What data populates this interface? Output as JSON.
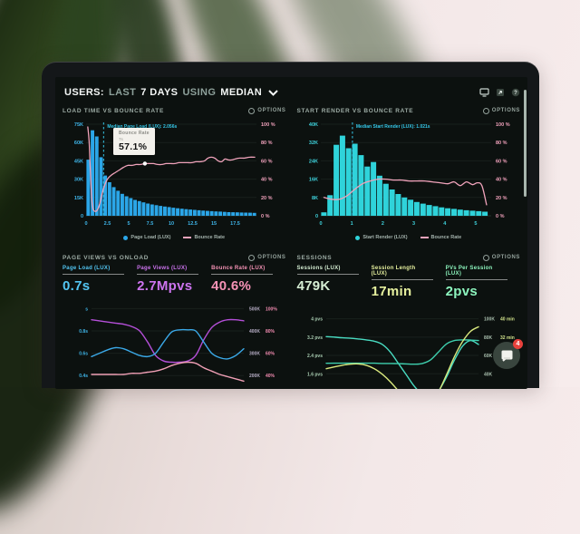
{
  "header": {
    "parts": [
      {
        "text": "USERS:",
        "emph": true
      },
      {
        "text": "LAST",
        "emph": false
      },
      {
        "text": "7 DAYS",
        "emph": true
      },
      {
        "text": "USING",
        "emph": false
      },
      {
        "text": "MEDIAN",
        "emph": true
      }
    ],
    "icons": [
      {
        "name": "display-icon"
      },
      {
        "name": "export-icon"
      },
      {
        "name": "help-icon",
        "glyph": "?"
      }
    ]
  },
  "fab": {
    "badge": "4",
    "badge_color": "#e8413c"
  },
  "chart_data": [
    {
      "id": "load_time_vs_bounce_rate",
      "type": "histogram+line",
      "title": "LOAD TIME VS BOUNCE RATE",
      "options_label": "OPTIONS",
      "x_ticks": [
        0,
        2.5,
        5,
        7.5,
        10,
        12.5,
        15,
        17.5
      ],
      "x_max": 20,
      "axis_left_color": "#3fb6ea",
      "axis_right_color": "#f1a2bc",
      "y_left": {
        "max": 75,
        "unit": "K",
        "ticks": [
          "75K",
          "60K",
          "45K",
          "30K",
          "15K",
          "0"
        ]
      },
      "y_right": {
        "max": 100,
        "unit": "%",
        "ticks": [
          "100 %",
          "80 %",
          "60 %",
          "40 %",
          "20 %",
          "0 %"
        ]
      },
      "bars": {
        "name": "Page Load (LUX)",
        "color": "#2ba6e8",
        "start": 0.25,
        "step": 0.5,
        "unit": "K",
        "values": [
          46,
          70,
          65,
          48,
          33,
          27.5,
          23.5,
          20.5,
          18,
          16,
          14.5,
          13,
          12,
          11,
          10,
          9.3,
          8.7,
          8.1,
          7.6,
          7.1,
          6.6,
          6.2,
          5.8,
          5.4,
          5.1,
          4.8,
          4.5,
          4.2,
          4,
          3.8,
          3.6,
          3.4,
          3.2,
          3,
          2.9,
          2.8,
          2.7,
          2.6,
          2.5,
          2.4
        ]
      },
      "line": {
        "name": "Bounce Rate",
        "color": "#f0a3bb",
        "unit": "%",
        "points": [
          [
            0.2,
            97
          ],
          [
            0.35,
            82
          ],
          [
            0.5,
            50
          ],
          [
            0.65,
            20
          ],
          [
            0.8,
            8
          ],
          [
            1.0,
            5
          ],
          [
            1.3,
            6
          ],
          [
            1.6,
            13
          ],
          [
            1.9,
            25
          ],
          [
            2.2,
            34
          ],
          [
            2.5,
            40
          ],
          [
            2.9,
            44
          ],
          [
            3.4,
            47
          ],
          [
            3.9,
            50
          ],
          [
            4.4,
            53
          ],
          [
            4.9,
            55
          ],
          [
            5.4,
            55
          ],
          [
            5.9,
            56
          ],
          [
            6.4,
            56
          ],
          [
            6.9,
            57
          ],
          [
            7.4,
            57
          ],
          [
            7.9,
            57
          ],
          [
            8.4,
            56
          ],
          [
            8.9,
            56
          ],
          [
            9.4,
            57
          ],
          [
            9.9,
            57
          ],
          [
            10.4,
            57
          ],
          [
            10.9,
            58
          ],
          [
            11.4,
            58
          ],
          [
            11.9,
            58
          ],
          [
            12.4,
            58
          ],
          [
            12.9,
            59
          ],
          [
            13.4,
            59
          ],
          [
            13.9,
            60
          ],
          [
            14.3,
            63
          ],
          [
            14.7,
            64
          ],
          [
            15.1,
            63
          ],
          [
            15.5,
            60
          ],
          [
            15.9,
            59
          ],
          [
            16.3,
            62
          ],
          [
            16.7,
            61
          ],
          [
            17.1,
            61
          ],
          [
            17.5,
            62
          ],
          [
            18.0,
            63
          ],
          [
            18.6,
            63
          ],
          [
            19.2,
            64
          ],
          [
            19.8,
            64
          ]
        ]
      },
      "median_line": {
        "x": 2.056,
        "label": "Median Page Load (LUX): 2.056s",
        "color": "#35c7e8"
      },
      "tooltip": {
        "title": "Bounce Rate",
        "subtitle": "7s",
        "value": "57.1%",
        "anchor_x": 6.9,
        "anchor_y": 57
      }
    },
    {
      "id": "start_render_vs_bounce_rate",
      "type": "histogram+line",
      "title": "START RENDER VS BOUNCE RATE",
      "options_label": "OPTIONS",
      "x_ticks": [
        0,
        1,
        2,
        3,
        4,
        5
      ],
      "x_max": 5.5,
      "axis_left_color": "#3fd4de",
      "axis_right_color": "#f1a2bc",
      "y_left": {
        "max": 40,
        "unit": "K",
        "ticks": [
          "40K",
          "32K",
          "24K",
          "16K",
          "8K",
          "0"
        ]
      },
      "y_right": {
        "max": 100,
        "unit": "%",
        "ticks": [
          "100 %",
          "80 %",
          "60 %",
          "40 %",
          "20 %",
          "0 %"
        ]
      },
      "bars": {
        "name": "Start Render (LUX)",
        "color": "#2fd3da",
        "start": 0.1,
        "step": 0.2,
        "unit": "K",
        "values": [
          1.5,
          9,
          31,
          35,
          29.5,
          31.5,
          26.5,
          21.5,
          23.5,
          17.5,
          14,
          11.5,
          9.5,
          8,
          7,
          6,
          5.3,
          4.7,
          4.2,
          3.7,
          3.3,
          3,
          2.7,
          2.4,
          2.2,
          2,
          1.8
        ]
      },
      "line": {
        "name": "Bounce Rate",
        "color": "#f0a3bb",
        "unit": "%",
        "points": [
          [
            0.1,
            20
          ],
          [
            0.35,
            18
          ],
          [
            0.6,
            18
          ],
          [
            0.85,
            22
          ],
          [
            1.1,
            29
          ],
          [
            1.35,
            35
          ],
          [
            1.6,
            38
          ],
          [
            1.85,
            40
          ],
          [
            2.1,
            40
          ],
          [
            2.35,
            39
          ],
          [
            2.6,
            39
          ],
          [
            2.85,
            38
          ],
          [
            3.1,
            38
          ],
          [
            3.35,
            38
          ],
          [
            3.6,
            37
          ],
          [
            3.85,
            36
          ],
          [
            4.1,
            35
          ],
          [
            4.3,
            37
          ],
          [
            4.5,
            33
          ],
          [
            4.7,
            37
          ],
          [
            4.9,
            34
          ],
          [
            5.05,
            36
          ],
          [
            5.2,
            33
          ],
          [
            5.35,
            12
          ]
        ]
      },
      "median_line": {
        "x": 1.021,
        "label": "Median Start Render (LUX): 1.021s",
        "color": "#35c7e8"
      }
    },
    {
      "id": "page_views_vs_onload",
      "type": "line",
      "title": "PAGE VIEWS VS ONLOAD",
      "options_label": "OPTIONS",
      "metrics": [
        {
          "label": "Page Load (LUX)",
          "value": "0.7s",
          "color": "#53c6f3"
        },
        {
          "label": "Page Views (LUX)",
          "value": "2.7Mpvs",
          "color": "#cd74ef"
        },
        {
          "label": "Bounce Rate (LUX)",
          "value": "40.6%",
          "color": "#f693b6"
        }
      ],
      "y_left_ticks": [
        "s",
        "0.8s",
        "0.6s",
        "0.4s"
      ],
      "y_left_color": "#3fb6ea",
      "y_right_ticks": [
        [
          "500K",
          "100%"
        ],
        [
          "400K",
          "80%"
        ],
        [
          "300K",
          "60%"
        ],
        [
          "200K",
          "40%"
        ]
      ],
      "y_right_colors": [
        "#b7aec6",
        "#f18bb0"
      ],
      "tick_values": [
        1.0,
        0.8,
        0.6,
        0.4
      ],
      "y_range": [
        0.28,
        1.06
      ],
      "series": [
        {
          "name": "Page Views",
          "color": "#b44fd8",
          "values": [
            0.9,
            0.89,
            0.88,
            0.87,
            0.86,
            0.84,
            0.8,
            0.7,
            0.58,
            0.53,
            0.52,
            0.52,
            0.53,
            0.58,
            0.72,
            0.83,
            0.88,
            0.9,
            0.9,
            0.89
          ]
        },
        {
          "name": "Page Load",
          "color": "#3ba9e8",
          "values": [
            0.57,
            0.6,
            0.63,
            0.65,
            0.64,
            0.61,
            0.58,
            0.57,
            0.6,
            0.7,
            0.79,
            0.81,
            0.81,
            0.8,
            0.7,
            0.6,
            0.56,
            0.55,
            0.58,
            0.64
          ]
        },
        {
          "name": "Bounce Rate",
          "color": "#ef9fb5",
          "values": [
            0.41,
            0.41,
            0.41,
            0.41,
            0.41,
            0.42,
            0.42,
            0.43,
            0.44,
            0.46,
            0.49,
            0.51,
            0.52,
            0.51,
            0.47,
            0.44,
            0.41,
            0.39,
            0.37,
            0.35
          ]
        }
      ]
    },
    {
      "id": "sessions",
      "type": "line",
      "title": "SESSIONS",
      "options_label": "OPTIONS",
      "metrics": [
        {
          "label": "Sessions (LUX)",
          "value": "479K",
          "color": "#d6efd4"
        },
        {
          "label": "Session Length (LUX)",
          "value": "17min",
          "color": "#e6f09e"
        },
        {
          "label": "PVs Per Session (LUX)",
          "value": "2pvs",
          "color": "#8df5be"
        }
      ],
      "y_left_ticks": [
        "4 pvs",
        "3.2 pvs",
        "2.4 pvs",
        "1.6 pvs"
      ],
      "y_left_color": "#a9cdb2",
      "y_right_ticks": [
        [
          "100K",
          "40 min"
        ],
        [
          "80K",
          "32 min"
        ],
        [
          "60K",
          "24 min"
        ],
        [
          "40K",
          ""
        ]
      ],
      "y_right_colors": [
        "#a9bfae",
        "#cfe08a"
      ],
      "tick_values": [
        4,
        3.2,
        2.4,
        1.6
      ],
      "y_range": [
        0.7,
        4.5
      ],
      "series": [
        {
          "name": "PVs Per Session",
          "color": "#49dcc2",
          "values": [
            3.22,
            3.2,
            3.17,
            3.15,
            3.12,
            3.08,
            3.02,
            2.88,
            2.55,
            2.05,
            1.55,
            1.05,
            0.7,
            0.6,
            0.85,
            1.45,
            2.2,
            2.8,
            3.05,
            2.88
          ]
        },
        {
          "name": "Sessions",
          "color": "#3ecfae",
          "values": [
            2.06,
            2.06,
            2.06,
            2.06,
            2.06,
            2.06,
            2.06,
            2.05,
            2.05,
            2.04,
            2.03,
            2.02,
            2.05,
            2.2,
            2.55,
            2.9,
            3.05,
            3.08,
            3.07,
            3.05
          ]
        },
        {
          "name": "Session Length",
          "color": "#d9e87e",
          "values": [
            1.82,
            1.9,
            1.97,
            2.02,
            2.03,
            1.97,
            1.82,
            1.58,
            1.25,
            0.85,
            0.45,
            0.15,
            0.05,
            0.25,
            0.8,
            1.55,
            2.35,
            3.0,
            3.45,
            3.65
          ]
        }
      ]
    }
  ]
}
